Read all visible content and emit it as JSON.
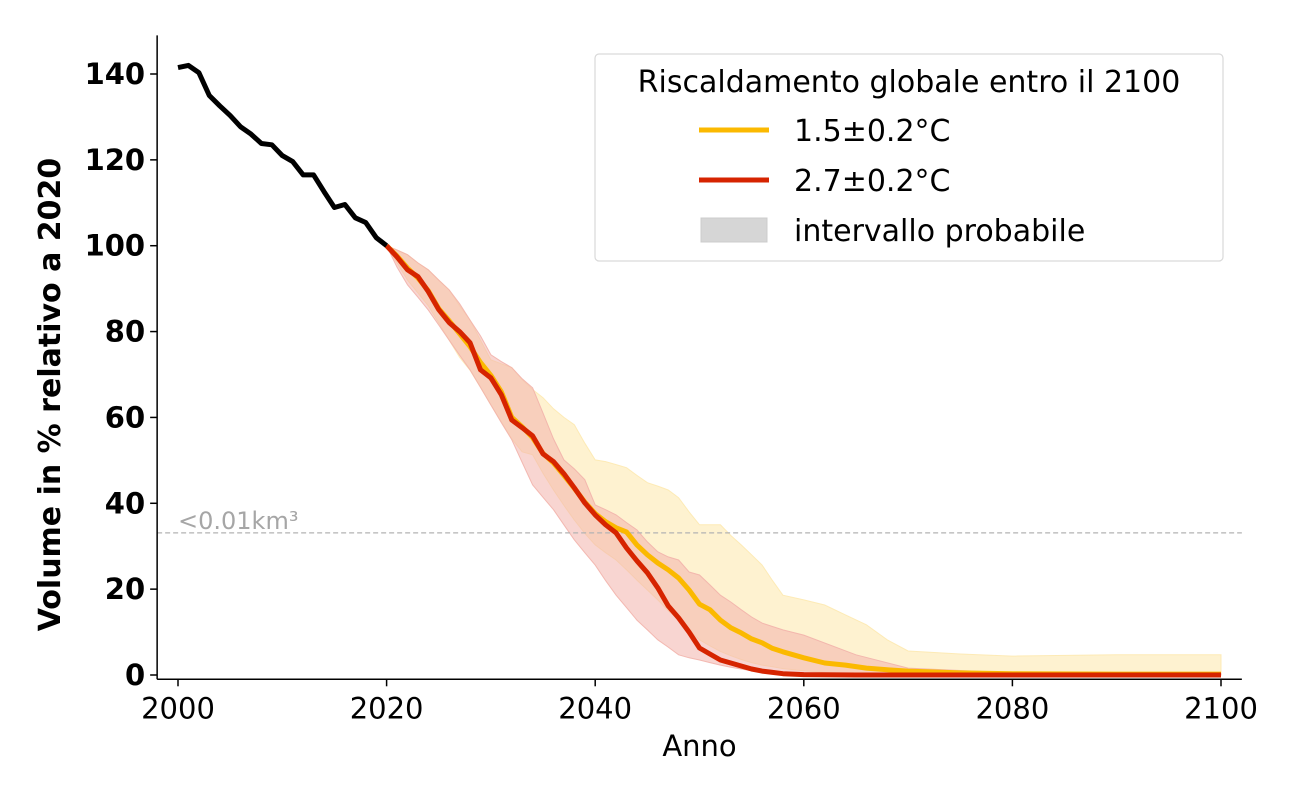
{
  "chart_data": {
    "type": "line",
    "title": "",
    "xlabel": "Anno",
    "ylabel": "Volume in % relativo a 2020",
    "xlim": [
      1998,
      2102
    ],
    "ylim": [
      -1,
      149
    ],
    "xticks": [
      2000,
      2020,
      2040,
      2060,
      2080,
      2100
    ],
    "xtick_labels": [
      "2000",
      "2020",
      "2040",
      "2060",
      "2080",
      "2100"
    ],
    "yticks": [
      0,
      20,
      40,
      60,
      80,
      100,
      120,
      140
    ],
    "ytick_labels": [
      "0",
      "20",
      "40",
      "60",
      "80",
      "100",
      "120",
      "140"
    ],
    "grid": false,
    "threshold": {
      "value": 33.1,
      "label": "<0.01km³",
      "color": "#b3b3b3"
    },
    "historical": {
      "name": "observed",
      "color": "#000000",
      "x": [
        2000,
        2001,
        2002,
        2003,
        2004,
        2005,
        2006,
        2007,
        2008,
        2009,
        2010,
        2011,
        2012,
        2013,
        2014,
        2015,
        2016,
        2017,
        2018,
        2019,
        2020
      ],
      "y": [
        141.5,
        142,
        140.3,
        135,
        132.6,
        130.3,
        127.7,
        126,
        123.8,
        123.5,
        121,
        119.6,
        116.5,
        116.5,
        112.6,
        108.9,
        109.6,
        106.5,
        105.4,
        101.9,
        100
      ]
    },
    "series": [
      {
        "name": "1.5±0.2°C",
        "color": "#fbb900",
        "band_color": "#fde9b0",
        "x": [
          2020,
          2021,
          2022,
          2023,
          2024,
          2025,
          2026,
          2027,
          2028,
          2029,
          2030,
          2031,
          2032,
          2033,
          2034,
          2035,
          2036,
          2037,
          2038,
          2039,
          2040,
          2041,
          2042,
          2043,
          2044,
          2045,
          2046,
          2047,
          2048,
          2049,
          2050,
          2051,
          2052,
          2053,
          2054,
          2055,
          2056,
          2057,
          2058,
          2060,
          2062,
          2064,
          2066,
          2068,
          2070,
          2075,
          2080,
          2090,
          2100
        ],
        "y": [
          100,
          97.6,
          94.8,
          92.5,
          89.5,
          85.3,
          82.5,
          79.5,
          76.5,
          72.8,
          69.8,
          66,
          60,
          57.8,
          55.3,
          51.6,
          49.4,
          46.5,
          43.5,
          40.3,
          37.6,
          35.7,
          34.3,
          33.3,
          30.3,
          28,
          26.1,
          24.5,
          22.6,
          19.8,
          16.5,
          15.2,
          12.8,
          11,
          9.8,
          8.4,
          7.5,
          6.2,
          5.4,
          4,
          2.8,
          2.3,
          1.6,
          1.2,
          0.9,
          0.5,
          0.3,
          0.2,
          0.2
        ],
        "lower": [
          100,
          96,
          92,
          89,
          86,
          82,
          78,
          74,
          71,
          67,
          62.9,
          59,
          55,
          52,
          51.3,
          47,
          43.1,
          39.5,
          36.1,
          33,
          30.3,
          28.5,
          26.8,
          24.5,
          22.1,
          19.8,
          17.5,
          15,
          12.8,
          10.5,
          8.2,
          6.8,
          5.5,
          4.5,
          3.6,
          2.9,
          2.3,
          1.9,
          1.5,
          1,
          0.6,
          0.4,
          0.3,
          0.2,
          0.1,
          0,
          0,
          0,
          0
        ],
        "upper": [
          100,
          99,
          97.9,
          96,
          94.4,
          92,
          89.7,
          86,
          82.7,
          78,
          73.4,
          72.5,
          71.6,
          68.8,
          66.5,
          64.6,
          62,
          60,
          58.3,
          54,
          50.1,
          49.7,
          49,
          48.3,
          46.5,
          44.8,
          44,
          43.1,
          41.3,
          38,
          35,
          35,
          35,
          32.5,
          30.3,
          28,
          25.6,
          22,
          18.6,
          17.5,
          16.3,
          14,
          11.7,
          8.2,
          5.6,
          4.9,
          4.4,
          4.7,
          4.7
        ]
      },
      {
        "name": "2.7±0.2°C",
        "color": "#d62400",
        "band_color": "#f2b3ab",
        "x": [
          2020,
          2021,
          2022,
          2023,
          2024,
          2025,
          2026,
          2027,
          2028,
          2029,
          2030,
          2031,
          2032,
          2033,
          2034,
          2035,
          2036,
          2037,
          2038,
          2039,
          2040,
          2041,
          2042,
          2043,
          2044,
          2045,
          2046,
          2047,
          2048,
          2049,
          2050,
          2051,
          2052,
          2053,
          2054,
          2055,
          2056,
          2057,
          2058,
          2060,
          2065,
          2070,
          2080,
          2090,
          2100
        ],
        "y": [
          100,
          97.4,
          94.4,
          92.8,
          89.3,
          85.1,
          82.1,
          80,
          77.4,
          71.1,
          69.2,
          65.3,
          59.4,
          57.6,
          55.7,
          51.5,
          49.7,
          46.9,
          43.6,
          40.1,
          37.3,
          35,
          33.1,
          29.6,
          26.6,
          23.8,
          20.3,
          16.1,
          13.3,
          10,
          6.3,
          4.9,
          3.5,
          2.8,
          2.1,
          1.4,
          0.9,
          0.6,
          0.3,
          0.1,
          0,
          0,
          0,
          0,
          0
        ],
        "lower": [
          100,
          95,
          90.9,
          88,
          85,
          81.5,
          78,
          74.5,
          71.1,
          67,
          62.9,
          58.8,
          54.8,
          49.5,
          44.3,
          41.4,
          38.5,
          35,
          31.5,
          28.5,
          25.6,
          22,
          18.6,
          15.7,
          12.8,
          10.5,
          8.2,
          6.5,
          4.7,
          4,
          3.5,
          2.9,
          2.3,
          1.8,
          1.4,
          1,
          0.7,
          0.5,
          0.3,
          0.1,
          0,
          0,
          0,
          0,
          0
        ],
        "upper": [
          100,
          99,
          97.9,
          96,
          94.4,
          92,
          89.7,
          86.5,
          82.7,
          79,
          74.6,
          73,
          71.6,
          69,
          66.9,
          61,
          55,
          50.1,
          48,
          45.5,
          39.6,
          38.5,
          37.3,
          35.5,
          33.8,
          31,
          28.7,
          27.5,
          26.8,
          24,
          23.3,
          21,
          18.6,
          17,
          15.2,
          13.5,
          12.1,
          11.3,
          10.5,
          9.3,
          4.7,
          1.6,
          0.5,
          0.3,
          0.3
        ]
      }
    ],
    "legend": {
      "title": "Riscaldamento globale entro il 2100",
      "placement": "top-right",
      "entries": [
        {
          "label": "1.5±0.2°C",
          "kind": "line",
          "color": "#fbb900"
        },
        {
          "label": "2.7±0.2°C",
          "kind": "line",
          "color": "#d62400"
        },
        {
          "label": "intervallo probabile",
          "kind": "patch",
          "color": "#d6d6d6"
        }
      ]
    }
  }
}
